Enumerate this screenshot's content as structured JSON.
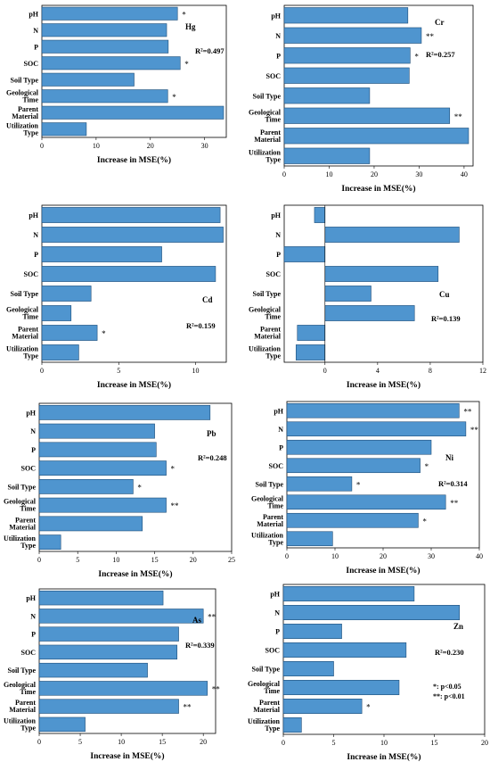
{
  "chart_data": [
    {
      "type": "bar",
      "orientation": "horizontal",
      "element": "Hg",
      "r2": "R²=0.497",
      "xlabel": "Increase in MSE(%)",
      "categories": [
        "pH",
        "N",
        "P",
        "SOC",
        "Soil Type",
        "Geological Time",
        "Parent Material",
        "Utilization Type"
      ],
      "values": [
        25.0,
        23.0,
        23.3,
        25.5,
        17.0,
        23.2,
        33.5,
        8.2
      ],
      "significance": [
        "*",
        "",
        "",
        "*",
        "",
        "*",
        "",
        ""
      ],
      "xlim": [
        0,
        34
      ],
      "xticks": [
        0,
        10,
        20,
        30
      ]
    },
    {
      "type": "bar",
      "orientation": "horizontal",
      "element": "Cr",
      "r2": "R²=0.257",
      "xlabel": "Increase in MSE(%)",
      "categories": [
        "pH",
        "N",
        "P",
        "SOC",
        "Soil Type",
        "Geological Time",
        "Parent Material",
        "Utilization Type"
      ],
      "values": [
        27.5,
        30.5,
        28.0,
        27.8,
        19.0,
        36.8,
        41.0,
        19.0
      ],
      "significance": [
        "",
        "**",
        "*",
        "",
        "",
        "**",
        "",
        ""
      ],
      "xlim": [
        0,
        42
      ],
      "xticks": [
        0,
        10,
        20,
        30,
        40
      ]
    },
    {
      "type": "bar",
      "orientation": "horizontal",
      "element": "Cd",
      "r2": "R²=0.159",
      "xlabel": "Increase in MSE(%)",
      "categories": [
        "pH",
        "N",
        "P",
        "SOC",
        "Soil Type",
        "Geological Time",
        "Parent Material",
        "Utilization Type"
      ],
      "values": [
        11.6,
        11.8,
        7.8,
        11.3,
        3.2,
        1.9,
        3.6,
        2.4
      ],
      "significance": [
        "",
        "",
        "",
        "",
        "",
        "",
        "*",
        ""
      ],
      "xlim": [
        0,
        12
      ],
      "xticks": [
        0,
        5,
        10
      ]
    },
    {
      "type": "bar",
      "orientation": "horizontal",
      "element": "Cu",
      "r2": "R²=0.139",
      "xlabel": "Increase in MSE(%)",
      "categories": [
        "pH",
        "N",
        "P",
        "SOC",
        "Soil Type",
        "Geological Time",
        "Parent Material",
        "Utilization Type"
      ],
      "values": [
        -0.8,
        10.2,
        -3.1,
        8.6,
        3.5,
        6.8,
        -2.1,
        -2.2
      ],
      "significance": [
        "",
        "",
        "",
        "",
        "",
        "",
        "",
        ""
      ],
      "xlim": [
        -3.1,
        12
      ],
      "xticks": [
        0,
        4,
        8,
        12
      ]
    },
    {
      "type": "bar",
      "orientation": "horizontal",
      "element": "Pb",
      "r2": "R²=0.248",
      "xlabel": "Increase in MSE(%)",
      "categories": [
        "pH",
        "N",
        "P",
        "SOC",
        "Soil Type",
        "Geological Time",
        "Parent Material",
        "Utilization Type"
      ],
      "values": [
        22.2,
        15.0,
        15.2,
        16.5,
        12.2,
        16.5,
        13.4,
        2.8
      ],
      "significance": [
        "",
        "",
        "",
        "*",
        "*",
        "**",
        "",
        ""
      ],
      "xlim": [
        0,
        25
      ],
      "xticks": [
        0,
        5,
        10,
        15,
        20,
        25
      ]
    },
    {
      "type": "bar",
      "orientation": "horizontal",
      "element": "Ni",
      "r2": "R²=0.314",
      "xlabel": "Increase in MSE(%)",
      "categories": [
        "pH",
        "N",
        "P",
        "SOC",
        "Soil Type",
        "Geological Time",
        "Parent Material",
        "Utilization Type"
      ],
      "values": [
        35.8,
        37.2,
        30.0,
        27.7,
        13.5,
        33.0,
        27.3,
        9.5
      ],
      "significance": [
        "**",
        "**",
        "",
        "*",
        "*",
        "**",
        "*",
        ""
      ],
      "xlim": [
        0,
        40
      ],
      "xticks": [
        0,
        10,
        20,
        30,
        40
      ]
    },
    {
      "type": "bar",
      "orientation": "horizontal",
      "element": "As",
      "r2": "R²=0.339",
      "xlabel": "Increase in MSE(%)",
      "categories": [
        "pH",
        "N",
        "P",
        "SOC",
        "Soil Type",
        "Geological Time",
        "Parent Material",
        "Utilization Type"
      ],
      "values": [
        15.1,
        20.0,
        17.0,
        16.8,
        13.2,
        20.5,
        17.0,
        5.6
      ],
      "significance": [
        "",
        "**",
        "",
        "",
        "",
        "**",
        "**",
        ""
      ],
      "xlim": [
        0,
        21.5
      ],
      "xticks": [
        0,
        5,
        10,
        15,
        20
      ]
    },
    {
      "type": "bar",
      "orientation": "horizontal",
      "element": "Zn",
      "r2": "R²=0.230",
      "xlabel": "Increase in MSE(%)",
      "categories": [
        "pH",
        "N",
        "P",
        "SOC",
        "Soil Type",
        "Geological Time",
        "Parent Material",
        "Utilization Type"
      ],
      "values": [
        13.0,
        17.5,
        5.8,
        12.2,
        5.0,
        11.5,
        7.8,
        1.8
      ],
      "significance": [
        "",
        "",
        "",
        "",
        "",
        "",
        "*",
        ""
      ],
      "xlim": [
        0,
        20
      ],
      "xticks": [
        0,
        5,
        10,
        15,
        20
      ],
      "legend_note": [
        "*: p<0.05",
        "**: p<0.01"
      ]
    }
  ]
}
